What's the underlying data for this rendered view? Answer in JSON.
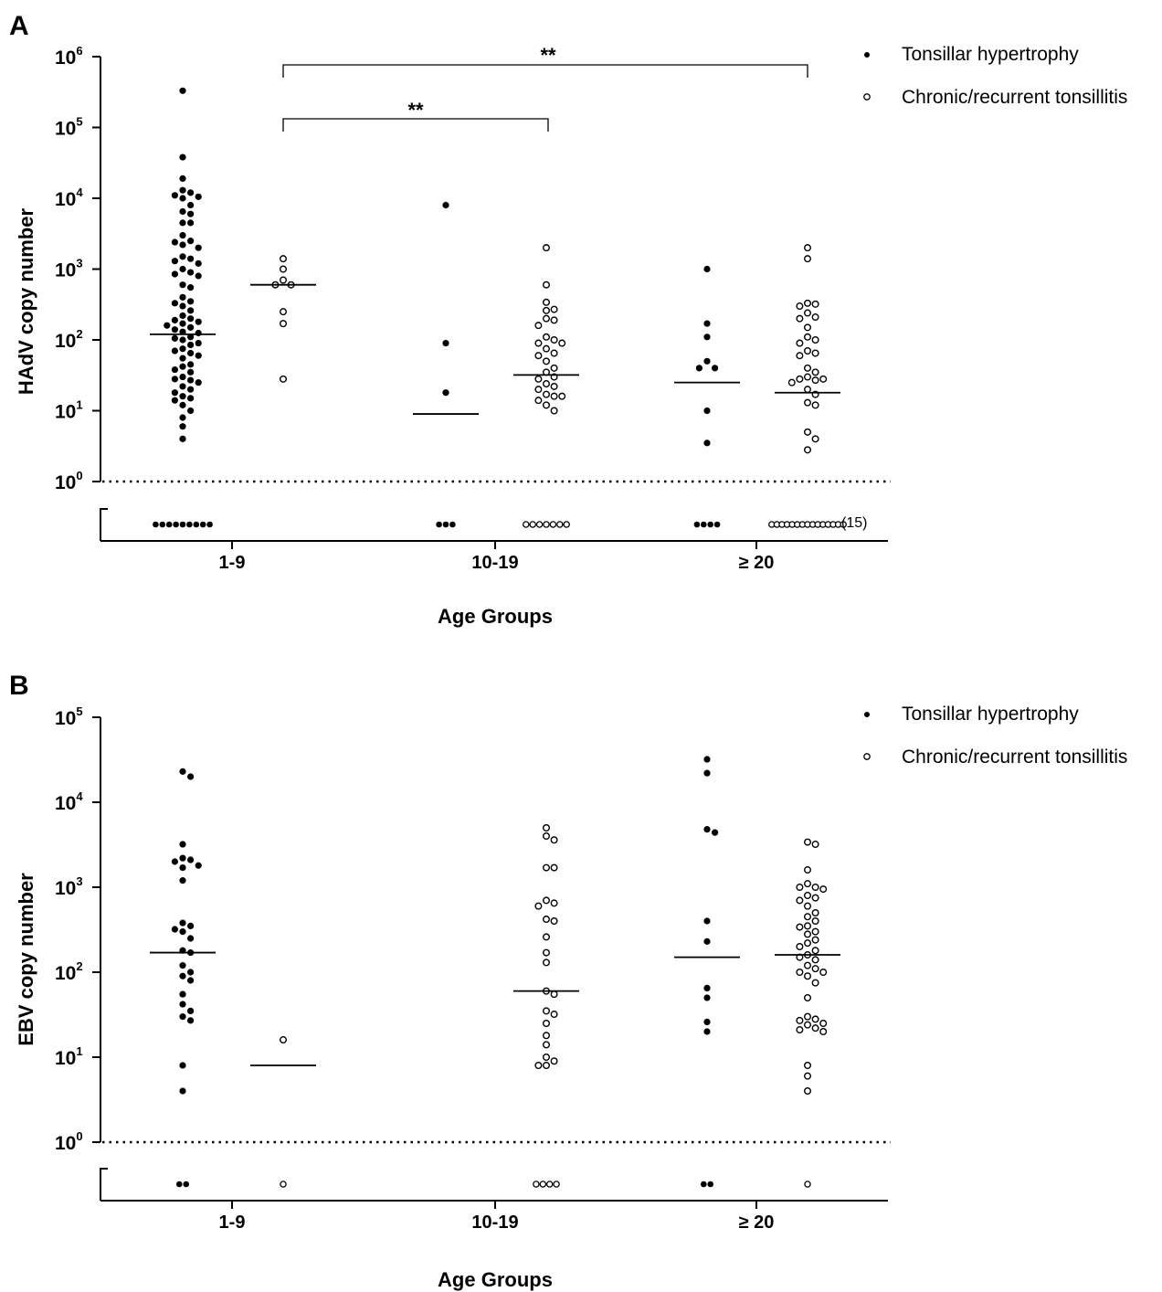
{
  "figure": {
    "legend": {
      "entries": [
        {
          "label": "Tonsillar hypertrophy",
          "marker": "filled-circle"
        },
        {
          "label": "Chronic/recurrent tonsillitis",
          "marker": "open-circle"
        }
      ]
    }
  },
  "chart_data": [
    {
      "panel": "A",
      "type": "scatter",
      "subtype": "dot-plot with medians",
      "ylabel": "HAdV copy number",
      "xlabel": "Age Groups",
      "y_scale": "log10",
      "ylim": [
        1,
        1000000
      ],
      "ytick_labels": [
        {
          "base": "10",
          "exp": "0"
        },
        {
          "base": "10",
          "exp": "1"
        },
        {
          "base": "10",
          "exp": "2"
        },
        {
          "base": "10",
          "exp": "3"
        },
        {
          "base": "10",
          "exp": "4"
        },
        {
          "base": "10",
          "exp": "5"
        },
        {
          "base": "10",
          "exp": "6"
        }
      ],
      "detection_limit": 1,
      "categories": [
        "1-9",
        "10-19",
        "≥ 20"
      ],
      "series": [
        {
          "name": "Tonsillar hypertrophy",
          "marker": "filled",
          "groups": [
            {
              "category": "1-9",
              "median": 120,
              "below_detection": 9,
              "values": [
                330000,
                38000,
                19000,
                13000,
                12000,
                11000,
                10500,
                10000,
                8000,
                6500,
                6000,
                4500,
                4500,
                3000,
                2500,
                2400,
                2200,
                2000,
                1500,
                1400,
                1300,
                1200,
                1000,
                900,
                850,
                800,
                600,
                550,
                400,
                350,
                330,
                300,
                260,
                220,
                200,
                190,
                180,
                170,
                160,
                150,
                140,
                130,
                125,
                110,
                105,
                100,
                90,
                85,
                75,
                70,
                65,
                60,
                55,
                45,
                42,
                38,
                35,
                30,
                28,
                27,
                25,
                22,
                20,
                18,
                16,
                15,
                14,
                12,
                10,
                8,
                6,
                4
              ]
            },
            {
              "category": "10-19",
              "median": 9,
              "below_detection": 3,
              "values": [
                8000,
                90,
                18
              ]
            },
            {
              "category": "≥ 20",
              "median": 25,
              "below_detection": 4,
              "values": [
                1000,
                170,
                110,
                50,
                40,
                40,
                10,
                3.5
              ]
            }
          ]
        },
        {
          "name": "Chronic/recurrent tonsillitis",
          "marker": "open",
          "groups": [
            {
              "category": "1-9",
              "median": 600,
              "below_detection": 0,
              "values": [
                1400,
                1000,
                700,
                600,
                600,
                250,
                170,
                28
              ]
            },
            {
              "category": "10-19",
              "median": 32,
              "below_detection": 7,
              "values": [
                2000,
                600,
                340,
                270,
                260,
                200,
                190,
                160,
                110,
                100,
                90,
                90,
                75,
                65,
                60,
                50,
                40,
                35,
                30,
                28,
                24,
                22,
                20,
                17,
                16,
                16,
                14,
                12,
                10
              ]
            },
            {
              "category": "≥ 20",
              "median": 18,
              "below_detection": 15,
              "values": [
                2000,
                1400,
                330,
                320,
                300,
                240,
                210,
                200,
                150,
                110,
                100,
                90,
                70,
                65,
                60,
                40,
                35,
                30,
                28,
                28,
                27,
                25,
                20,
                17,
                13,
                12,
                5,
                4,
                2.8
              ]
            }
          ]
        }
      ],
      "annotations": [
        {
          "text": "**",
          "from": "Chronic/recurrent tonsillitis 1-9",
          "to": "Chronic/recurrent tonsillitis 10-19"
        },
        {
          "text": "**",
          "from": "Chronic/recurrent tonsillitis 1-9",
          "to": "Chronic/recurrent tonsillitis ≥ 20"
        },
        {
          "text": "(15)",
          "refers_to": "Chronic/recurrent tonsillitis ≥ 20 below detection"
        }
      ]
    },
    {
      "panel": "B",
      "type": "scatter",
      "subtype": "dot-plot with medians",
      "ylabel": "EBV copy number",
      "xlabel": "Age Groups",
      "y_scale": "log10",
      "ylim": [
        1,
        100000
      ],
      "ytick_labels": [
        {
          "base": "10",
          "exp": "0"
        },
        {
          "base": "10",
          "exp": "1"
        },
        {
          "base": "10",
          "exp": "2"
        },
        {
          "base": "10",
          "exp": "3"
        },
        {
          "base": "10",
          "exp": "4"
        },
        {
          "base": "10",
          "exp": "5"
        }
      ],
      "detection_limit": 1,
      "categories": [
        "1-9",
        "10-19",
        "≥ 20"
      ],
      "series": [
        {
          "name": "Tonsillar hypertrophy",
          "marker": "filled",
          "groups": [
            {
              "category": "1-9",
              "median": 170,
              "below_detection": 2,
              "values": [
                23000,
                20000,
                3200,
                2200,
                2100,
                2000,
                1800,
                1700,
                1200,
                380,
                350,
                320,
                300,
                250,
                180,
                170,
                120,
                100,
                90,
                80,
                55,
                42,
                35,
                30,
                27,
                8,
                4
              ]
            },
            {
              "category": "10-19",
              "median": null,
              "below_detection": 0,
              "values": []
            },
            {
              "category": "≥ 20",
              "median": 150,
              "below_detection": 2,
              "values": [
                32000,
                22000,
                4800,
                4400,
                400,
                230,
                65,
                50,
                26,
                20
              ]
            }
          ]
        },
        {
          "name": "Chronic/recurrent tonsillitis",
          "marker": "open",
          "groups": [
            {
              "category": "1-9",
              "median": 8,
              "below_detection": 1,
              "values": [
                16
              ]
            },
            {
              "category": "10-19",
              "median": 60,
              "below_detection": 4,
              "values": [
                5000,
                4000,
                3600,
                1700,
                1700,
                700,
                650,
                600,
                420,
                400,
                260,
                170,
                130,
                60,
                55,
                35,
                32,
                25,
                18,
                14,
                10,
                9,
                8,
                8
              ]
            },
            {
              "category": "≥ 20",
              "median": 160,
              "below_detection": 1,
              "values": [
                3400,
                3200,
                1600,
                1100,
                1000,
                1000,
                950,
                800,
                750,
                700,
                600,
                500,
                450,
                400,
                350,
                340,
                300,
                280,
                240,
                220,
                200,
                180,
                160,
                150,
                140,
                120,
                110,
                100,
                100,
                90,
                75,
                50,
                30,
                28,
                27,
                25,
                24,
                22,
                21,
                20,
                8,
                6,
                4
              ]
            }
          ]
        }
      ],
      "annotations": []
    }
  ]
}
